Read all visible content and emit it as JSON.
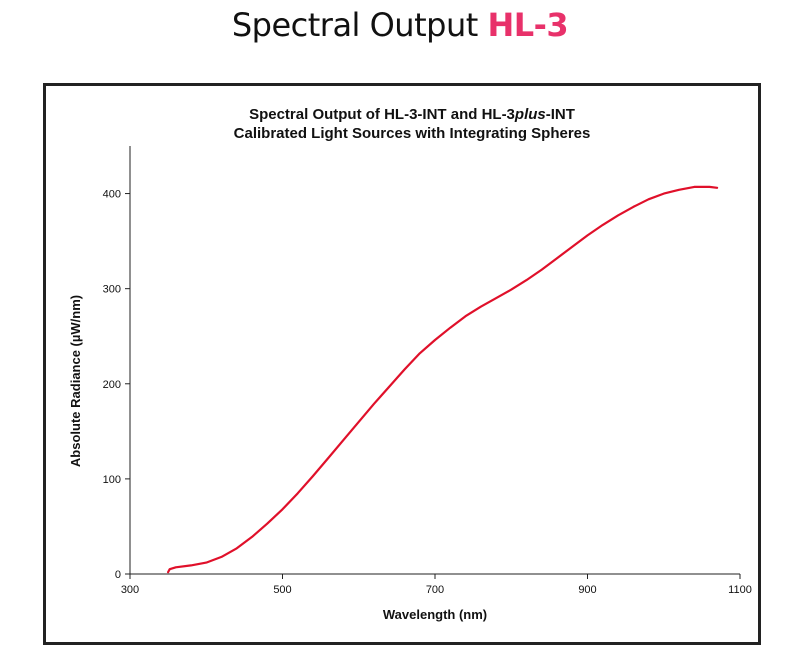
{
  "header": {
    "title_main": "Spectral Output",
    "title_accent": "HL-3",
    "accent_color": "#e8316a"
  },
  "chart_data": {
    "type": "line",
    "title_line1_prefix": "Spectral Output of HL-3-INT and HL-3",
    "title_line1_italic": "plus",
    "title_line1_suffix": "-INT",
    "title_line2": "Calibrated Light Sources with Integrating Spheres",
    "xlabel": "Wavelength (nm)",
    "ylabel": "Absolute Radiance (µW/nm)",
    "xlim": [
      300,
      1100
    ],
    "ylim": [
      0,
      450
    ],
    "xticks": [
      300,
      500,
      700,
      900,
      1100
    ],
    "yticks": [
      0,
      100,
      200,
      300,
      400
    ],
    "grid": false,
    "line_color": "#e0102a",
    "series": [
      {
        "x": [
          350,
          352,
          360,
          380,
          400,
          420,
          440,
          460,
          480,
          500,
          520,
          540,
          560,
          580,
          600,
          620,
          640,
          660,
          680,
          700,
          720,
          740,
          760,
          780,
          800,
          820,
          840,
          860,
          880,
          900,
          920,
          940,
          960,
          980,
          1000,
          1020,
          1040,
          1060,
          1070
        ],
        "y": [
          2,
          5,
          7,
          9,
          12,
          18,
          27,
          39,
          53,
          68,
          85,
          103,
          122,
          141,
          160,
          179,
          197,
          215,
          232,
          246,
          259,
          271,
          281,
          290,
          299,
          309,
          320,
          332,
          344,
          356,
          367,
          377,
          386,
          394,
          400,
          404,
          407,
          407,
          406
        ]
      }
    ]
  }
}
